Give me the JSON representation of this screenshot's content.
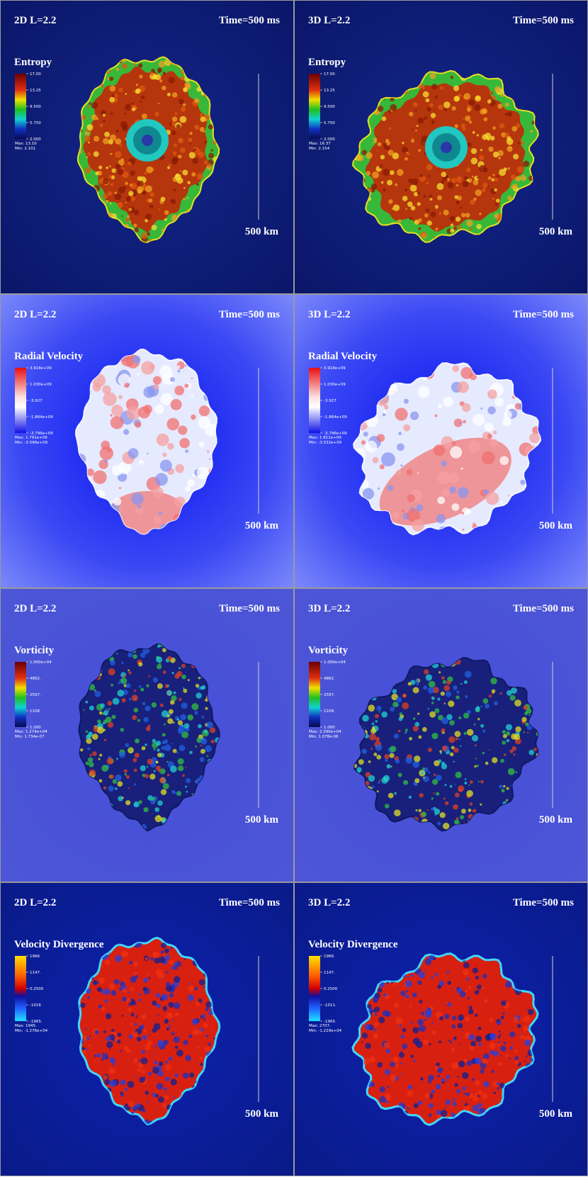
{
  "panels": [
    {
      "dimension": "2D L=2.2",
      "time": "Time=500 ms",
      "field": "Entropy",
      "colorbar_ticks": [
        "17.00",
        "13.25",
        "9.500",
        "5.750",
        "2.000"
      ],
      "max": "Max: 13.10",
      "min": "Min: 2.101",
      "scale": "500 km"
    },
    {
      "dimension": "3D L=2.2",
      "time": "Time=500 ms",
      "field": "Entropy",
      "colorbar_ticks": [
        "17.00",
        "13.25",
        "9.500",
        "5.750",
        "2.000"
      ],
      "max": "Max: 16.37",
      "min": "Min: 2.154",
      "scale": "500 km"
    },
    {
      "dimension": "2D L=2.2",
      "time": "Time=500 ms",
      "field": "Radial Velocity",
      "colorbar_ticks": [
        "3.918e+09",
        "1.030e+09",
        "-3.927",
        "-1.864e+09",
        "-3.796e+09"
      ],
      "max": "Max: 1.791e+09",
      "min": "Min: -3.596e+09",
      "scale": "500 km"
    },
    {
      "dimension": "3D L=2.2",
      "time": "Time=500 ms",
      "field": "Radial Velocity",
      "colorbar_ticks": [
        "3.918e+09",
        "1.030e+09",
        "-3.927",
        "-1.864e+09",
        "-3.796e+09"
      ],
      "max": "Max: 1.811e+09",
      "min": "Min: -3.532e+09",
      "scale": "500 km"
    },
    {
      "dimension": "2D L=2.2",
      "time": "Time=500 ms",
      "field": "Vorticity",
      "colorbar_ticks": [
        "1.000e+04",
        "4862.",
        "2597.",
        "1108.",
        "1.000"
      ],
      "max": "Max: 1.274e+04",
      "min": "Min: 1.734e-07",
      "scale": "500 km"
    },
    {
      "dimension": "3D L=2.2",
      "time": "Time=500 ms",
      "field": "Vorticity",
      "colorbar_ticks": [
        "1.000e+04",
        "4862.",
        "2597.",
        "1108.",
        "1.000"
      ],
      "max": "Max: 2.290e+04",
      "min": "Min: 1.078e-06",
      "scale": "500 km"
    },
    {
      "dimension": "2D L=2.2",
      "time": "Time=500 ms",
      "field": "Velocity Divergence",
      "colorbar_ticks": [
        "1966.",
        "1147.",
        "0.2500",
        "-1016",
        "-1965."
      ],
      "max": "Max: 1945.",
      "min": "Min: -1.276e+04",
      "scale": "500 km"
    },
    {
      "dimension": "3D L=2.2",
      "time": "Time=500 ms",
      "field": "Velocity Divergence",
      "colorbar_ticks": [
        "1966.",
        "1147.",
        "0.2500",
        "-1011.",
        "-1965."
      ],
      "max": "Max: 2707.",
      "min": "Min: -1.229e+04",
      "scale": "500 km"
    }
  ]
}
